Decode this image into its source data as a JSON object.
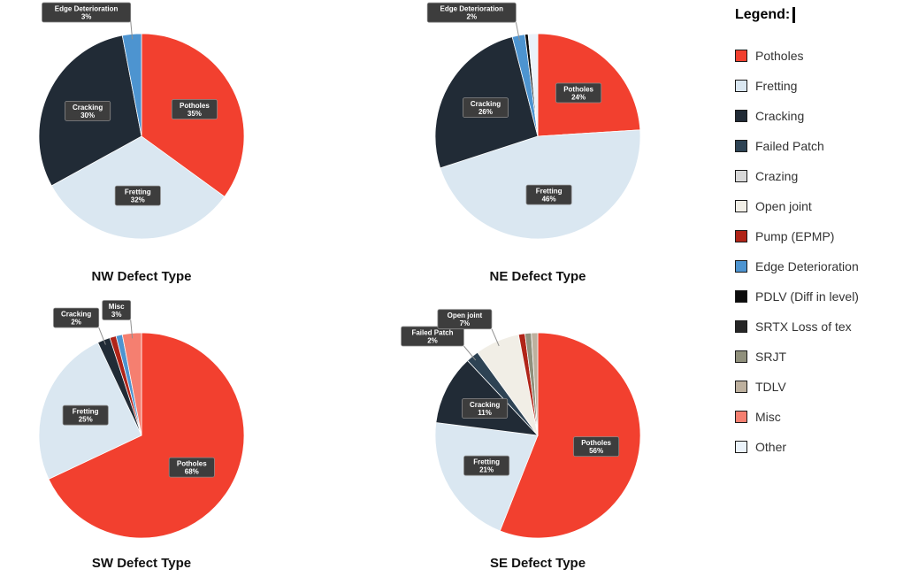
{
  "legend": {
    "title": "Legend:",
    "items": [
      {
        "label": "Potholes",
        "color": "#F2402F"
      },
      {
        "label": "Fretting",
        "color": "#DAE7F1"
      },
      {
        "label": "Cracking",
        "color": "#212B36"
      },
      {
        "label": "Failed Patch",
        "color": "#2E4354"
      },
      {
        "label": "Crazing",
        "color": "#D8D8D8"
      },
      {
        "label": "Open joint",
        "color": "#F1EEE6"
      },
      {
        "label": "Pump (EPMP)",
        "color": "#B02418"
      },
      {
        "label": "Edge Deterioration",
        "color": "#4D94D0"
      },
      {
        "label": "PDLV (Diff in level)",
        "color": "#0C0C0C"
      },
      {
        "label": "SRTX Loss of tex",
        "color": "#262626"
      },
      {
        "label": "SRJT",
        "color": "#90907C"
      },
      {
        "label": "TDLV",
        "color": "#BDB09E"
      },
      {
        "label": "Misc",
        "color": "#F57F70"
      },
      {
        "label": "Other",
        "color": "#EAF2FA"
      }
    ]
  },
  "chart_data": [
    {
      "type": "pie",
      "title": "NW Defect Type",
      "slices": [
        {
          "label": "Potholes",
          "value": 35,
          "show_label": true
        },
        {
          "label": "Fretting",
          "value": 32,
          "show_label": true
        },
        {
          "label": "Cracking",
          "value": 30,
          "show_label": true
        },
        {
          "label": "Edge Deterioration",
          "value": 3,
          "show_label": true
        }
      ]
    },
    {
      "type": "pie",
      "title": "NE Defect Type",
      "slices": [
        {
          "label": "Potholes",
          "value": 24,
          "show_label": true
        },
        {
          "label": "Fretting",
          "value": 46,
          "show_label": true
        },
        {
          "label": "Cracking",
          "value": 26,
          "show_label": true
        },
        {
          "label": "Edge Deterioration",
          "value": 2,
          "show_label": true
        },
        {
          "label": "PDLV (Diff in level)",
          "value": 0.5,
          "show_label": false
        },
        {
          "label": "Other",
          "value": 1.5,
          "show_label": false
        }
      ]
    },
    {
      "type": "pie",
      "title": "SW Defect Type",
      "slices": [
        {
          "label": "Potholes",
          "value": 68,
          "show_label": true
        },
        {
          "label": "Fretting",
          "value": 25,
          "show_label": true
        },
        {
          "label": "Cracking",
          "value": 2,
          "show_label": true
        },
        {
          "label": "Pump (EPMP)",
          "value": 1,
          "show_label": false
        },
        {
          "label": "Edge Deterioration",
          "value": 1,
          "show_label": false
        },
        {
          "label": "Misc",
          "value": 3,
          "show_label": true
        }
      ]
    },
    {
      "type": "pie",
      "title": "SE Defect Type",
      "slices": [
        {
          "label": "Potholes",
          "value": 56,
          "show_label": true
        },
        {
          "label": "Fretting",
          "value": 21,
          "show_label": true
        },
        {
          "label": "Cracking",
          "value": 11,
          "show_label": true
        },
        {
          "label": "Failed Patch",
          "value": 2,
          "show_label": true
        },
        {
          "label": "Open joint",
          "value": 7,
          "show_label": true
        },
        {
          "label": "Pump (EPMP)",
          "value": 1,
          "show_label": false
        },
        {
          "label": "SRJT",
          "value": 1,
          "show_label": false
        },
        {
          "label": "TDLV",
          "value": 1,
          "show_label": false
        }
      ]
    }
  ]
}
